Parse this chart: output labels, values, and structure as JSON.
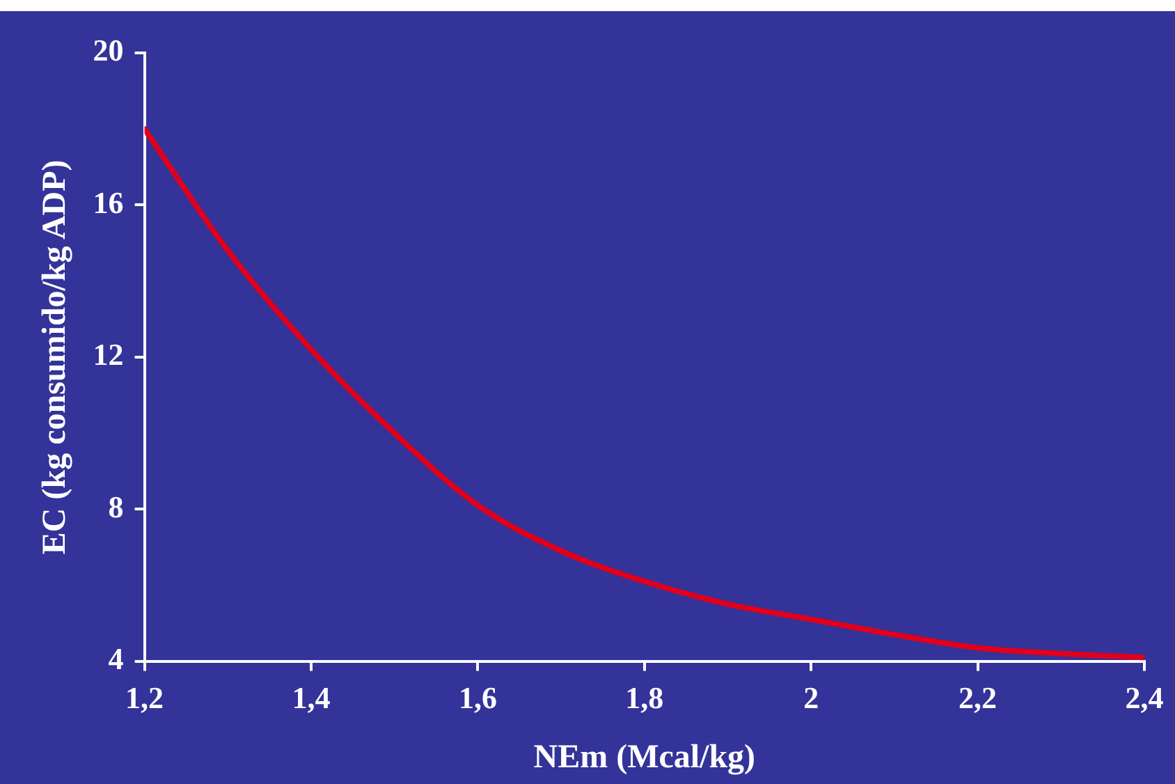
{
  "chart_data": {
    "type": "line",
    "xlabel": "NEm (Mcal/kg)",
    "ylabel": "EC (kg consumido/kg ADP)",
    "x": [
      1.2,
      1.3,
      1.4,
      1.5,
      1.6,
      1.7,
      1.8,
      1.9,
      2.0,
      2.1,
      2.2,
      2.3,
      2.4
    ],
    "series": [
      {
        "color": "#e0001b",
        "values": [
          18,
          14.8,
          12.2,
          10.0,
          8.1,
          6.9,
          6.1,
          5.5,
          5.1,
          4.7,
          4.35,
          4.2,
          4.1
        ]
      }
    ],
    "xlim": [
      1.2,
      2.4
    ],
    "xticks": [
      {
        "value": 1.2,
        "label": "1,2"
      },
      {
        "value": 1.4,
        "label": "1,4"
      },
      {
        "value": 1.6,
        "label": "1,6"
      },
      {
        "value": 1.8,
        "label": "1,8"
      },
      {
        "value": 2,
        "label": "2"
      },
      {
        "value": 2.2,
        "label": "2,2"
      },
      {
        "value": 2.4,
        "label": "2,4"
      }
    ],
    "ylim": [
      4,
      20
    ],
    "yticks": [
      4,
      8,
      12,
      16,
      20
    ],
    "grid": false,
    "legend": false,
    "marker": "none",
    "line_style": "solid"
  }
}
